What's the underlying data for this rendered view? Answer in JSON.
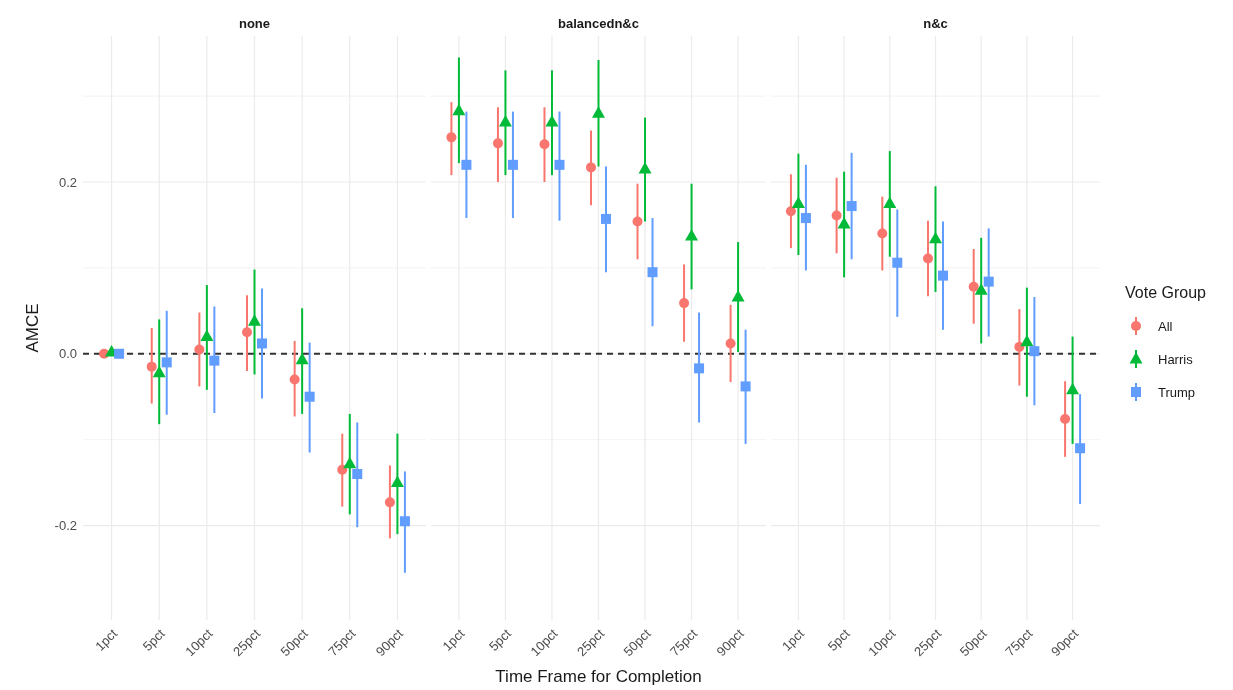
{
  "chart_data": [
    {
      "type": "scatter",
      "title": "none",
      "ylabel": "AMCE",
      "categories": [
        "1pct",
        "5pct",
        "10pct",
        "25pct",
        "50pct",
        "75pct",
        "90pct"
      ],
      "ylim": [
        -0.31,
        0.37
      ],
      "yticks": [
        {
          "value": -0.2,
          "label": "-0.2"
        },
        {
          "value": -0.1,
          "label": null
        },
        {
          "value": 0,
          "label": "0.0"
        },
        {
          "value": 0.1,
          "label": null
        },
        {
          "value": 0.2,
          "label": "0.2"
        },
        {
          "value": 0.3,
          "label": null
        }
      ],
      "grid": true,
      "ref_lines": [
        {
          "axis": "y",
          "value": 0,
          "color": "#333333",
          "line_style": "dashed"
        }
      ],
      "series": [
        {
          "color": "#f8766d",
          "marker": "circle",
          "values": [
            0,
            -0.015,
            0.005,
            0.025,
            -0.03,
            -0.135,
            -0.173
          ],
          "errors": [
            null,
            [
              -0.058,
              0.03
            ],
            [
              -0.038,
              0.048
            ],
            [
              -0.02,
              0.068
            ],
            [
              -0.073,
              0.015
            ],
            [
              -0.178,
              -0.093
            ],
            [
              -0.215,
              -0.13
            ]
          ]
        },
        {
          "color": "#00ba38",
          "marker": "triangle",
          "values": [
            0.002,
            -0.022,
            0.02,
            0.038,
            -0.007,
            -0.128,
            -0.15
          ],
          "errors": [
            null,
            [
              -0.082,
              0.04
            ],
            [
              -0.042,
              0.08
            ],
            [
              -0.024,
              0.098
            ],
            [
              -0.07,
              0.053
            ],
            [
              -0.187,
              -0.07
            ],
            [
              -0.21,
              -0.093
            ]
          ]
        },
        {
          "color": "#619cff",
          "marker": "square",
          "values": [
            0,
            -0.01,
            -0.008,
            0.012,
            -0.05,
            -0.14,
            -0.195
          ],
          "errors": [
            null,
            [
              -0.071,
              0.05
            ],
            [
              -0.069,
              0.055
            ],
            [
              -0.052,
              0.076
            ],
            [
              -0.115,
              0.013
            ],
            [
              -0.202,
              -0.08
            ],
            [
              -0.255,
              -0.137
            ]
          ]
        }
      ]
    },
    {
      "type": "scatter",
      "title": "balancedn&c",
      "xlabel": "Time Frame for Completion",
      "categories": [
        "1pct",
        "5pct",
        "10pct",
        "25pct",
        "50pct",
        "75pct",
        "90pct"
      ],
      "ylim": [
        -0.31,
        0.37
      ],
      "yticks": [
        -0.2,
        {
          "value": -0.1,
          "label": null
        },
        0,
        {
          "value": 0.1,
          "label": null
        },
        0.2,
        {
          "value": 0.3,
          "label": null
        }
      ],
      "grid": true,
      "tick_labels": "x",
      "ref_lines": [
        {
          "axis": "y",
          "value": 0,
          "color": "#333333",
          "line_style": "dashed"
        }
      ],
      "series": [
        {
          "color": "#f8766d",
          "marker": "circle",
          "values": [
            0.252,
            0.245,
            0.244,
            0.217,
            0.154,
            0.059,
            0.012
          ],
          "errors": [
            [
              0.208,
              0.293
            ],
            [
              0.2,
              0.287
            ],
            [
              0.2,
              0.287
            ],
            [
              0.173,
              0.26
            ],
            [
              0.11,
              0.198
            ],
            [
              0.014,
              0.104
            ],
            [
              -0.033,
              0.057
            ]
          ]
        },
        {
          "color": "#00ba38",
          "marker": "triangle",
          "values": [
            0.283,
            0.27,
            0.27,
            0.28,
            0.215,
            0.137,
            0.066
          ],
          "errors": [
            [
              0.222,
              0.345
            ],
            [
              0.208,
              0.33
            ],
            [
              0.208,
              0.33
            ],
            [
              0.218,
              0.342
            ],
            [
              0.154,
              0.275
            ],
            [
              0.075,
              0.198
            ],
            [
              0.002,
              0.13
            ]
          ]
        },
        {
          "color": "#619cff",
          "marker": "square",
          "values": [
            0.22,
            0.22,
            0.22,
            0.157,
            0.095,
            -0.017,
            -0.038
          ],
          "errors": [
            [
              0.158,
              0.282
            ],
            [
              0.158,
              0.282
            ],
            [
              0.155,
              0.282
            ],
            [
              0.095,
              0.218
            ],
            [
              0.032,
              0.158
            ],
            [
              -0.08,
              0.048
            ],
            [
              -0.105,
              0.028
            ]
          ]
        }
      ]
    },
    {
      "type": "scatter",
      "title": "n&c",
      "legend_title": "Vote Group",
      "legend": "right",
      "categories": [
        "1pct",
        "5pct",
        "10pct",
        "25pct",
        "50pct",
        "75pct",
        "90pct"
      ],
      "ylim": [
        -0.31,
        0.37
      ],
      "yticks": [
        -0.2,
        {
          "value": -0.1,
          "label": null
        },
        0,
        {
          "value": 0.1,
          "label": null
        },
        0.2,
        {
          "value": 0.3,
          "label": null
        }
      ],
      "grid": true,
      "tick_labels": "x",
      "ref_lines": [
        {
          "axis": "y",
          "value": 0,
          "color": "#333333",
          "line_style": "dashed"
        }
      ],
      "series": [
        {
          "name": "All",
          "color": "#f8766d",
          "marker": "circle",
          "values": [
            0.166,
            0.161,
            0.14,
            0.111,
            0.078,
            0.008,
            -0.076
          ],
          "errors": [
            [
              0.123,
              0.209
            ],
            [
              0.117,
              0.205
            ],
            [
              0.097,
              0.183
            ],
            [
              0.067,
              0.155
            ],
            [
              0.035,
              0.122
            ],
            [
              -0.037,
              0.052
            ],
            [
              -0.12,
              -0.032
            ]
          ]
        },
        {
          "name": "Harris",
          "color": "#00ba38",
          "marker": "triangle",
          "values": [
            0.175,
            0.151,
            0.175,
            0.134,
            0.074,
            0.014,
            -0.042
          ],
          "errors": [
            [
              0.115,
              0.233
            ],
            [
              0.089,
              0.212
            ],
            [
              0.113,
              0.236
            ],
            [
              0.072,
              0.195
            ],
            [
              0.012,
              0.135
            ],
            [
              -0.05,
              0.077
            ],
            [
              -0.105,
              0.02
            ]
          ]
        },
        {
          "name": "Trump",
          "color": "#619cff",
          "marker": "square",
          "values": [
            0.158,
            0.172,
            0.106,
            0.091,
            0.084,
            0.003,
            -0.11
          ],
          "errors": [
            [
              0.097,
              0.22
            ],
            [
              0.11,
              0.234
            ],
            [
              0.043,
              0.168
            ],
            [
              0.028,
              0.154
            ],
            [
              0.02,
              0.146
            ],
            [
              -0.06,
              0.066
            ],
            [
              -0.175,
              -0.047
            ]
          ]
        }
      ]
    }
  ]
}
